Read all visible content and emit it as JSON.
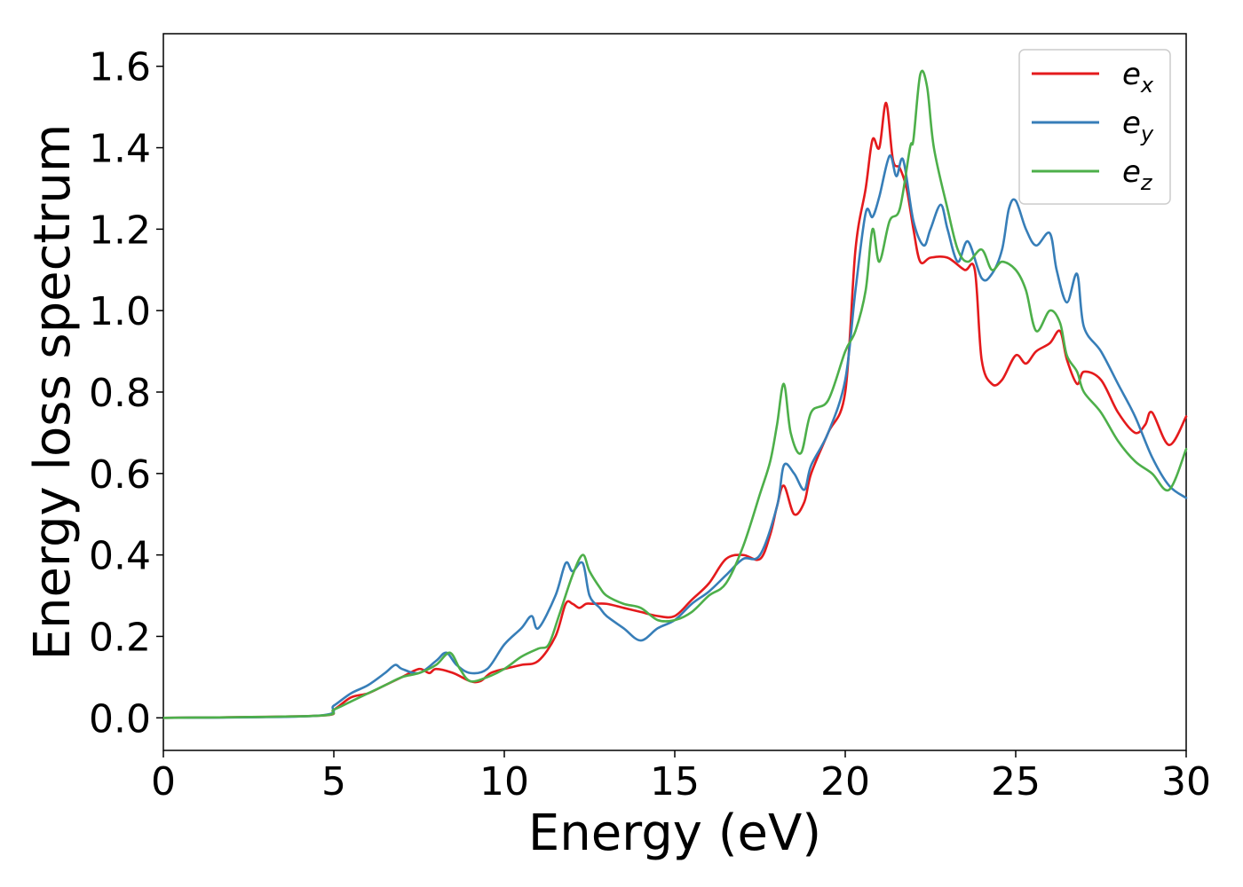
{
  "chart_data": {
    "type": "line",
    "xlabel": "Energy (eV)",
    "ylabel": "Energy loss spectrum",
    "xlim": [
      0,
      30
    ],
    "ylim": [
      -0.08,
      1.68
    ],
    "xticks": [
      0,
      5,
      10,
      15,
      20,
      25,
      30
    ],
    "xtick_labels": [
      "0",
      "5",
      "10",
      "15",
      "20",
      "25",
      "30"
    ],
    "yticks": [
      0.0,
      0.2,
      0.4,
      0.6,
      0.8,
      1.0,
      1.2,
      1.4,
      1.6
    ],
    "ytick_labels": [
      "0.0",
      "0.2",
      "0.4",
      "0.6",
      "0.8",
      "1.0",
      "1.2",
      "1.4",
      "1.6"
    ],
    "grid": false,
    "legend_position": "top-right",
    "series": [
      {
        "name": "e",
        "subscript": "x",
        "color": "#e41a1c",
        "x": [
          0,
          4.5,
          5.0,
          5.5,
          6.0,
          6.5,
          7.0,
          7.5,
          7.8,
          8.0,
          8.5,
          9.0,
          9.3,
          9.6,
          10.0,
          10.5,
          11.0,
          11.5,
          11.8,
          12.0,
          12.2,
          12.4,
          12.6,
          13.0,
          13.5,
          14.0,
          14.5,
          15.0,
          15.5,
          16.0,
          16.5,
          17.0,
          17.5,
          17.8,
          18.0,
          18.2,
          18.5,
          18.8,
          19.0,
          19.5,
          20.0,
          20.3,
          20.6,
          20.8,
          21.0,
          21.2,
          21.4,
          21.6,
          21.8,
          22.0,
          22.2,
          22.5,
          23.0,
          23.5,
          23.8,
          24.0,
          24.3,
          24.6,
          25.0,
          25.3,
          25.6,
          26.0,
          26.3,
          26.5,
          26.8,
          27.0,
          27.5,
          28.0,
          28.5,
          28.8,
          29.0,
          29.5,
          30.0
        ],
        "values": [
          0.0,
          0.005,
          0.02,
          0.05,
          0.06,
          0.08,
          0.1,
          0.12,
          0.11,
          0.12,
          0.11,
          0.09,
          0.09,
          0.11,
          0.12,
          0.13,
          0.14,
          0.2,
          0.28,
          0.28,
          0.27,
          0.28,
          0.28,
          0.28,
          0.27,
          0.26,
          0.25,
          0.25,
          0.29,
          0.33,
          0.39,
          0.4,
          0.39,
          0.45,
          0.52,
          0.57,
          0.5,
          0.53,
          0.6,
          0.7,
          0.8,
          1.15,
          1.3,
          1.42,
          1.4,
          1.51,
          1.37,
          1.35,
          1.3,
          1.2,
          1.12,
          1.13,
          1.13,
          1.1,
          1.1,
          0.88,
          0.82,
          0.83,
          0.89,
          0.87,
          0.9,
          0.92,
          0.95,
          0.88,
          0.82,
          0.85,
          0.83,
          0.75,
          0.7,
          0.72,
          0.75,
          0.67,
          0.74
        ]
      },
      {
        "name": "e",
        "subscript": "y",
        "color": "#377eb8",
        "x": [
          0,
          4.5,
          5.0,
          5.5,
          6.0,
          6.5,
          6.8,
          7.0,
          7.5,
          8.0,
          8.3,
          8.6,
          9.0,
          9.5,
          10.0,
          10.5,
          10.8,
          11.0,
          11.5,
          11.8,
          12.0,
          12.3,
          12.5,
          12.8,
          13.0,
          13.5,
          14.0,
          14.5,
          15.0,
          15.5,
          16.0,
          16.5,
          17.0,
          17.5,
          18.0,
          18.2,
          18.5,
          18.8,
          19.0,
          19.5,
          20.0,
          20.3,
          20.6,
          20.8,
          21.0,
          21.3,
          21.5,
          21.7,
          22.0,
          22.3,
          22.5,
          22.8,
          23.0,
          23.3,
          23.6,
          24.0,
          24.3,
          24.6,
          24.8,
          25.0,
          25.3,
          25.6,
          26.0,
          26.2,
          26.5,
          26.8,
          27.0,
          27.5,
          28.0,
          28.5,
          29.0,
          29.5,
          30.0
        ],
        "values": [
          0.0,
          0.005,
          0.03,
          0.06,
          0.08,
          0.11,
          0.13,
          0.12,
          0.11,
          0.14,
          0.16,
          0.13,
          0.11,
          0.12,
          0.18,
          0.22,
          0.25,
          0.22,
          0.3,
          0.38,
          0.36,
          0.38,
          0.3,
          0.27,
          0.25,
          0.22,
          0.19,
          0.22,
          0.24,
          0.28,
          0.31,
          0.35,
          0.39,
          0.4,
          0.52,
          0.62,
          0.6,
          0.56,
          0.62,
          0.7,
          0.83,
          1.05,
          1.24,
          1.23,
          1.28,
          1.38,
          1.33,
          1.37,
          1.22,
          1.16,
          1.2,
          1.26,
          1.2,
          1.12,
          1.17,
          1.08,
          1.09,
          1.15,
          1.25,
          1.27,
          1.2,
          1.16,
          1.19,
          1.1,
          1.02,
          1.09,
          0.96,
          0.9,
          0.82,
          0.74,
          0.64,
          0.57,
          0.54
        ]
      },
      {
        "name": "e",
        "subscript": "z",
        "color": "#4daf4a",
        "x": [
          0,
          4.5,
          5.0,
          5.5,
          6.0,
          6.5,
          7.0,
          7.5,
          8.0,
          8.4,
          8.7,
          9.0,
          9.5,
          10.0,
          10.5,
          11.0,
          11.3,
          11.6,
          12.0,
          12.3,
          12.5,
          12.8,
          13.0,
          13.5,
          14.0,
          14.5,
          15.0,
          15.5,
          16.0,
          16.5,
          17.0,
          17.5,
          17.8,
          18.0,
          18.2,
          18.4,
          18.7,
          19.0,
          19.5,
          20.0,
          20.3,
          20.6,
          20.8,
          21.0,
          21.3,
          21.6,
          21.9,
          22.0,
          22.2,
          22.4,
          22.6,
          23.0,
          23.3,
          23.6,
          24.0,
          24.3,
          24.6,
          25.0,
          25.3,
          25.6,
          26.0,
          26.3,
          26.5,
          26.8,
          27.0,
          27.5,
          28.0,
          28.5,
          29.0,
          29.5,
          30.0
        ],
        "values": [
          0.0,
          0.005,
          0.02,
          0.04,
          0.06,
          0.08,
          0.1,
          0.11,
          0.13,
          0.16,
          0.12,
          0.09,
          0.1,
          0.12,
          0.15,
          0.17,
          0.18,
          0.25,
          0.35,
          0.4,
          0.36,
          0.32,
          0.3,
          0.28,
          0.27,
          0.24,
          0.24,
          0.26,
          0.3,
          0.33,
          0.42,
          0.55,
          0.63,
          0.72,
          0.82,
          0.7,
          0.65,
          0.75,
          0.78,
          0.9,
          0.95,
          1.05,
          1.2,
          1.12,
          1.22,
          1.25,
          1.4,
          1.42,
          1.58,
          1.55,
          1.4,
          1.25,
          1.15,
          1.12,
          1.15,
          1.1,
          1.12,
          1.1,
          1.05,
          0.95,
          1.0,
          0.97,
          0.89,
          0.85,
          0.8,
          0.75,
          0.68,
          0.63,
          0.6,
          0.56,
          0.66
        ]
      }
    ]
  }
}
